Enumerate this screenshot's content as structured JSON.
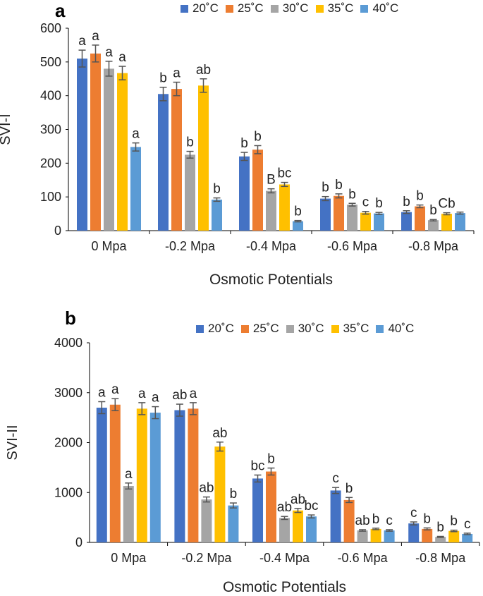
{
  "chart_data": [
    {
      "type": "bar",
      "panel": "a",
      "legend_position": "top",
      "ylabel": "SVI-I",
      "xlabel": "Osmotic Potentials",
      "ylim": [
        0,
        600
      ],
      "yticks": [
        0,
        100,
        200,
        300,
        400,
        500,
        600
      ],
      "categories": [
        "0 Mpa",
        "-0.2 Mpa",
        "-0.4 Mpa",
        "-0.6 Mpa",
        "-0.8 Mpa"
      ],
      "series": [
        {
          "name": "20˚C",
          "color": "#4472C4",
          "values": [
            510,
            405,
            220,
            95,
            55
          ],
          "errors": [
            25,
            20,
            12,
            6,
            4
          ],
          "labels": [
            "a",
            "b",
            "b",
            "b",
            "b"
          ]
        },
        {
          "name": "25˚C",
          "color": "#ED7D31",
          "values": [
            525,
            420,
            240,
            103,
            72
          ],
          "errors": [
            25,
            20,
            12,
            6,
            4
          ],
          "labels": [
            "a",
            "a",
            "b",
            "b",
            "b"
          ]
        },
        {
          "name": "30˚C",
          "color": "#A5A5A5",
          "values": [
            480,
            225,
            118,
            77,
            31
          ],
          "errors": [
            22,
            10,
            6,
            4,
            2
          ],
          "labels": [
            "a",
            "b",
            "B",
            "b",
            "b"
          ]
        },
        {
          "name": "35˚C",
          "color": "#FFC000",
          "values": [
            467,
            430,
            137,
            53,
            50
          ],
          "errors": [
            20,
            20,
            6,
            4,
            3
          ],
          "labels": [
            "a",
            "ab",
            "bc",
            "c",
            "Cb"
          ]
        },
        {
          "name": "40˚C",
          "color": "#5B9BD5",
          "values": [
            248,
            92,
            28,
            51,
            52
          ],
          "errors": [
            12,
            5,
            2,
            3,
            3
          ],
          "labels": [
            "a",
            "b",
            "b",
            "b",
            ""
          ]
        }
      ]
    },
    {
      "type": "bar",
      "panel": "b",
      "legend_position": "top",
      "ylabel": "SVI-II",
      "xlabel": "Osmotic Potentials",
      "ylim": [
        0,
        4000
      ],
      "yticks": [
        0,
        1000,
        2000,
        3000,
        4000
      ],
      "categories": [
        "0 Mpa",
        "-0.2 Mpa",
        "-0.4 Mpa",
        "-0.6 Mpa",
        "-0.8 Mpa"
      ],
      "series": [
        {
          "name": "20˚C",
          "color": "#4472C4",
          "values": [
            2700,
            2650,
            1280,
            1040,
            380
          ],
          "errors": [
            120,
            120,
            70,
            60,
            30
          ],
          "labels": [
            "a",
            "ab",
            "bc",
            "c",
            "c"
          ]
        },
        {
          "name": "25˚C",
          "color": "#ED7D31",
          "values": [
            2760,
            2680,
            1420,
            850,
            270
          ],
          "errors": [
            120,
            120,
            70,
            50,
            20
          ],
          "labels": [
            "a",
            "a",
            "b",
            "b",
            "b"
          ]
        },
        {
          "name": "30˚C",
          "color": "#A5A5A5",
          "values": [
            1130,
            860,
            490,
            240,
            110
          ],
          "errors": [
            60,
            50,
            30,
            15,
            10
          ],
          "labels": [
            "a",
            "ab",
            "ab",
            "ab",
            "b"
          ]
        },
        {
          "name": "35˚C",
          "color": "#FFC000",
          "values": [
            2680,
            1920,
            640,
            270,
            230
          ],
          "errors": [
            120,
            90,
            40,
            15,
            15
          ],
          "labels": [
            "a",
            "ab",
            "ab",
            "b",
            "b"
          ]
        },
        {
          "name": "40˚C",
          "color": "#5B9BD5",
          "values": [
            2600,
            740,
            520,
            240,
            170
          ],
          "errors": [
            120,
            50,
            30,
            15,
            15
          ],
          "labels": [
            "a",
            "b",
            "bc",
            "c",
            "c"
          ]
        }
      ]
    }
  ]
}
